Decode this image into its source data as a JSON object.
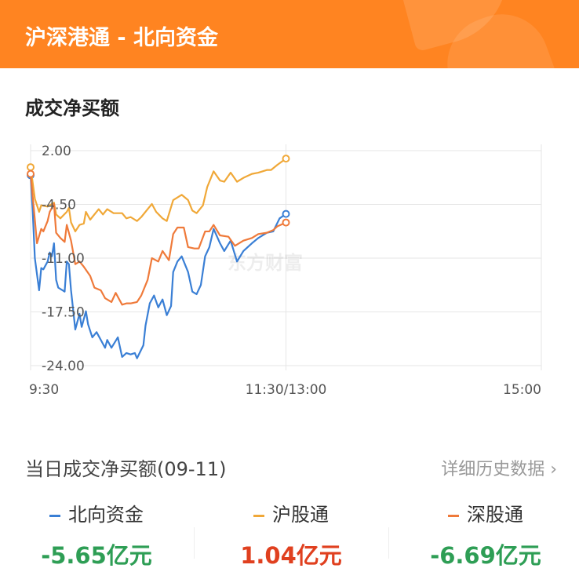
{
  "header": {
    "title": "沪深港通 - 北向资金"
  },
  "section_title": "成交净买额",
  "watermark": "东方财富",
  "colors": {
    "header": "#ff8421",
    "north": "#3a7fd5",
    "sh": "#f0a838",
    "sz": "#ef7a3a",
    "negative": "#2e9e55",
    "positive": "#e0401f"
  },
  "chart_data": {
    "type": "line",
    "title": "",
    "xlabel": "",
    "ylabel": "",
    "ylim": [
      -24,
      2
    ],
    "yticks": [
      "2.00",
      "-4.50",
      "-11.00",
      "-17.50",
      "-24.00"
    ],
    "xticks": [
      "9:30",
      "11:30/13:00",
      "15:00"
    ],
    "grid": true,
    "series": [
      {
        "name": "北向资金",
        "color": "#3a7fd5",
        "points": [
          [
            "9:30",
            -0.97
          ],
          [
            "9:31",
            -5.4
          ],
          [
            "9:32",
            -11.0
          ],
          [
            "9:34",
            -14.89
          ],
          [
            "9:35",
            -12.2
          ],
          [
            "9:36",
            -12.36
          ],
          [
            "9:38",
            -11.41
          ],
          [
            "9:39",
            -10.31
          ],
          [
            "9:40",
            -10.78
          ],
          [
            "9:41",
            -9.2
          ],
          [
            "9:42",
            -13.63
          ],
          [
            "9:43",
            -14.57
          ],
          [
            "9:45",
            -14.89
          ],
          [
            "9:46",
            -15.05
          ],
          [
            "9:47",
            -11.41
          ],
          [
            "9:48",
            -11.73
          ],
          [
            "9:49",
            -14.89
          ],
          [
            "9:51",
            -19.63
          ],
          [
            "9:53",
            -17.73
          ],
          [
            "9:54",
            -19.32
          ],
          [
            "9:56",
            -17.42
          ],
          [
            "9:57",
            -19.0
          ],
          [
            "9:59",
            -20.58
          ],
          [
            "10:01",
            -19.95
          ],
          [
            "10:03",
            -20.89
          ],
          [
            "10:05",
            -21.84
          ],
          [
            "10:06",
            -20.89
          ],
          [
            "10:08",
            -21.84
          ],
          [
            "10:11",
            -20.58
          ],
          [
            "10:13",
            -22.95
          ],
          [
            "10:15",
            -22.48
          ],
          [
            "10:17",
            -22.64
          ],
          [
            "10:19",
            -22.48
          ],
          [
            "10:20",
            -23.11
          ],
          [
            "10:23",
            -21.53
          ],
          [
            "10:24",
            -19.16
          ],
          [
            "10:26",
            -16.47
          ],
          [
            "10:28",
            -15.52
          ],
          [
            "10:30",
            -16.95
          ],
          [
            "10:32",
            -16.0
          ],
          [
            "10:34",
            -17.9
          ],
          [
            "10:36",
            -16.79
          ],
          [
            "10:37",
            -12.68
          ],
          [
            "10:39",
            -11.41
          ],
          [
            "10:41",
            -10.78
          ],
          [
            "10:44",
            -12.68
          ],
          [
            "10:46",
            -15.05
          ],
          [
            "10:48",
            -15.36
          ],
          [
            "10:50",
            -14.25
          ],
          [
            "10:52",
            -10.78
          ],
          [
            "10:54",
            -9.67
          ],
          [
            "10:56",
            -7.46
          ],
          [
            "10:59",
            -9.2
          ],
          [
            "11:01",
            -10.14
          ],
          [
            "11:04",
            -8.88
          ],
          [
            "11:07",
            -11.41
          ],
          [
            "11:10",
            -10.14
          ],
          [
            "11:14",
            -9.2
          ],
          [
            "11:17",
            -8.56
          ],
          [
            "11:21",
            -7.93
          ],
          [
            "11:24",
            -7.77
          ],
          [
            "11:27",
            -6.19
          ],
          [
            "11:30",
            -5.65
          ]
        ]
      },
      {
        "name": "沪股通",
        "color": "#f0a838",
        "points": [
          [
            "9:30",
            0.0
          ],
          [
            "9:32",
            -3.82
          ],
          [
            "9:34",
            -5.4
          ],
          [
            "9:35",
            -4.61
          ],
          [
            "9:38",
            -4.77
          ],
          [
            "9:41",
            -4.29
          ],
          [
            "9:42",
            -5.72
          ],
          [
            "9:44",
            -6.19
          ],
          [
            "9:47",
            -5.4
          ],
          [
            "9:48",
            -4.93
          ],
          [
            "9:49",
            -6.67
          ],
          [
            "9:51",
            -7.77
          ],
          [
            "9:53",
            -6.98
          ],
          [
            "9:55",
            -6.82
          ],
          [
            "9:56",
            -5.4
          ],
          [
            "9:58",
            -6.35
          ],
          [
            "10:02",
            -5.08
          ],
          [
            "10:04",
            -5.72
          ],
          [
            "10:06",
            -5.08
          ],
          [
            "10:09",
            -5.56
          ],
          [
            "10:13",
            -5.56
          ],
          [
            "10:15",
            -6.19
          ],
          [
            "10:17",
            -6.03
          ],
          [
            "10:20",
            -6.51
          ],
          [
            "10:22",
            -6.03
          ],
          [
            "10:25",
            -5.08
          ],
          [
            "10:27",
            -4.45
          ],
          [
            "10:29",
            -5.4
          ],
          [
            "10:32",
            -6.19
          ],
          [
            "10:34",
            -6.51
          ],
          [
            "10:37",
            -3.98
          ],
          [
            "10:41",
            -3.34
          ],
          [
            "10:44",
            -3.98
          ],
          [
            "10:46",
            -5.24
          ],
          [
            "10:48",
            -5.56
          ],
          [
            "10:51",
            -4.61
          ],
          [
            "10:53",
            -2.4
          ],
          [
            "10:56",
            -0.5
          ],
          [
            "10:59",
            -1.61
          ],
          [
            "11:01",
            -1.76
          ],
          [
            "11:04",
            -0.66
          ],
          [
            "11:07",
            -1.76
          ],
          [
            "11:10",
            -1.29
          ],
          [
            "11:14",
            -0.81
          ],
          [
            "11:17",
            -0.66
          ],
          [
            "11:21",
            -0.34
          ],
          [
            "11:23",
            -0.34
          ],
          [
            "11:26",
            0.29
          ],
          [
            "11:30",
            1.04
          ]
        ]
      },
      {
        "name": "深股通",
        "color": "#ef7a3a",
        "points": [
          [
            "9:30",
            -0.81
          ],
          [
            "9:32",
            -6.35
          ],
          [
            "9:33",
            -9.2
          ],
          [
            "9:35",
            -7.46
          ],
          [
            "9:36",
            -7.77
          ],
          [
            "9:38",
            -6.51
          ],
          [
            "9:39",
            -5.4
          ],
          [
            "9:41",
            -4.45
          ],
          [
            "9:42",
            -7.93
          ],
          [
            "9:44",
            -8.56
          ],
          [
            "9:46",
            -9.04
          ],
          [
            "9:47",
            -6.98
          ],
          [
            "9:49",
            -8.88
          ],
          [
            "9:51",
            -11.73
          ],
          [
            "9:53",
            -11.41
          ],
          [
            "9:55",
            -12.04
          ],
          [
            "9:58",
            -13.15
          ],
          [
            "10:00",
            -14.57
          ],
          [
            "10:03",
            -14.89
          ],
          [
            "10:05",
            -15.84
          ],
          [
            "10:08",
            -16.31
          ],
          [
            "10:10",
            -15.2
          ],
          [
            "10:13",
            -16.63
          ],
          [
            "10:15",
            -16.47
          ],
          [
            "10:17",
            -16.47
          ],
          [
            "10:20",
            -16.31
          ],
          [
            "10:22",
            -15.52
          ],
          [
            "10:25",
            -13.63
          ],
          [
            "10:27",
            -11.0
          ],
          [
            "10:30",
            -11.41
          ],
          [
            "10:32",
            -10.14
          ],
          [
            "10:35",
            -11.25
          ],
          [
            "10:37",
            -8.09
          ],
          [
            "10:39",
            -7.3
          ],
          [
            "10:42",
            -7.3
          ],
          [
            "10:44",
            -9.67
          ],
          [
            "10:47",
            -9.83
          ],
          [
            "10:49",
            -9.83
          ],
          [
            "10:52",
            -7.77
          ],
          [
            "10:54",
            -7.77
          ],
          [
            "10:56",
            -6.98
          ],
          [
            "10:59",
            -8.25
          ],
          [
            "11:03",
            -8.41
          ],
          [
            "11:06",
            -9.51
          ],
          [
            "11:10",
            -8.88
          ],
          [
            "11:14",
            -8.56
          ],
          [
            "11:17",
            -8.09
          ],
          [
            "11:21",
            -7.93
          ],
          [
            "11:24",
            -7.61
          ],
          [
            "11:26",
            -7.14
          ],
          [
            "11:30",
            -6.69
          ]
        ]
      }
    ]
  },
  "summary": {
    "title": "当日成交净买额(09-11)",
    "history_link": "详细历史数据 ›",
    "items": [
      {
        "label": "北向资金",
        "value": "-5.65亿元"
      },
      {
        "label": "沪股通",
        "value": "1.04亿元"
      },
      {
        "label": "深股通",
        "value": "-6.69亿元"
      }
    ]
  }
}
